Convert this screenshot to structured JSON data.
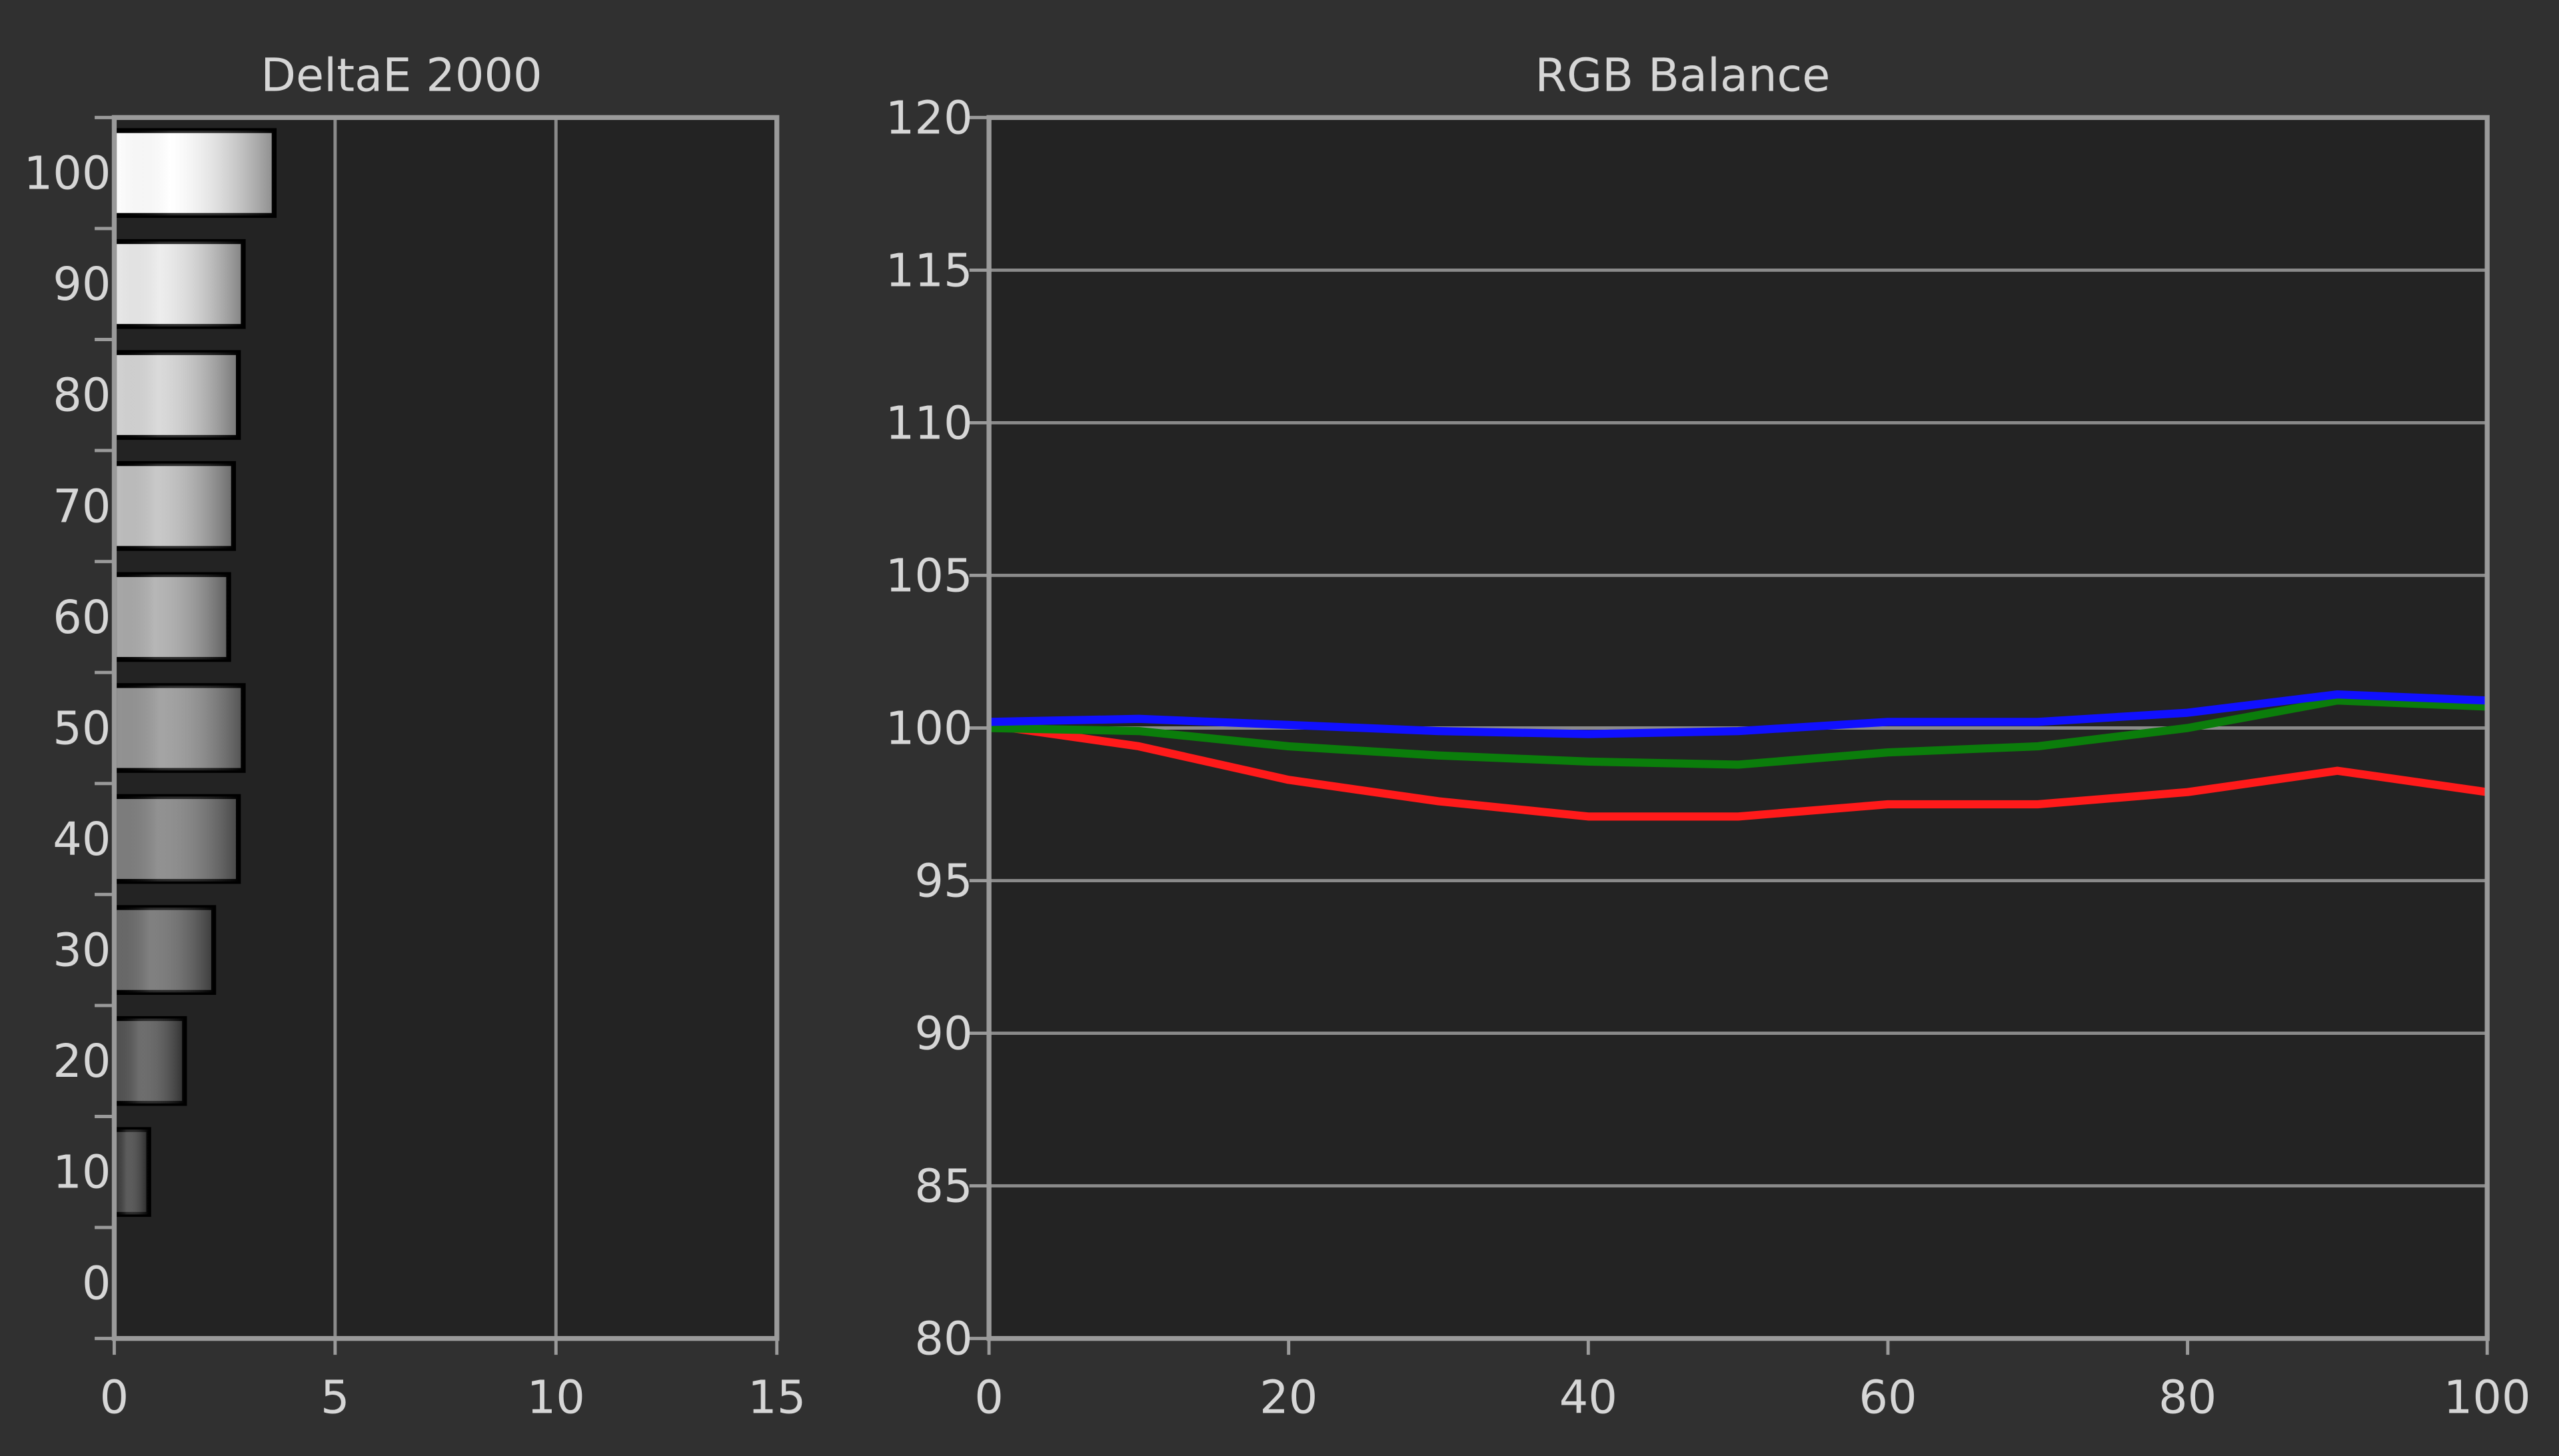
{
  "chart_data": [
    {
      "type": "bar",
      "orientation": "horizontal",
      "title": "DeltaE 2000",
      "categories": [
        "0",
        "10",
        "20",
        "30",
        "40",
        "50",
        "60",
        "70",
        "80",
        "90",
        "100"
      ],
      "values": [
        null,
        0.78,
        1.59,
        2.25,
        2.81,
        2.92,
        2.59,
        2.7,
        2.81,
        2.92,
        3.62
      ],
      "xlim": [
        0,
        15
      ],
      "xticks": [
        0,
        5,
        10,
        15
      ],
      "grid": true
    },
    {
      "type": "line",
      "title": "RGB Balance",
      "x": [
        0,
        10,
        20,
        30,
        40,
        50,
        60,
        70,
        80,
        90,
        100
      ],
      "series": [
        {
          "color": "#ff1a1a",
          "values": [
            100.1,
            99.4,
            98.3,
            97.6,
            97.1,
            97.1,
            97.5,
            97.5,
            97.9,
            98.6,
            97.9
          ]
        },
        {
          "color": "#0b7d0b",
          "values": [
            100.0,
            99.9,
            99.4,
            99.1,
            98.9,
            98.8,
            99.2,
            99.4,
            100.0,
            100.9,
            100.7
          ]
        },
        {
          "color": "#1010ff",
          "values": [
            100.2,
            100.3,
            100.1,
            99.9,
            99.8,
            99.9,
            100.2,
            100.2,
            100.5,
            101.1,
            100.9
          ]
        }
      ],
      "xlim": [
        0,
        100
      ],
      "xticks": [
        0,
        20,
        40,
        60,
        80,
        100
      ],
      "ylim": [
        80,
        120
      ],
      "yticks": [
        80,
        85,
        90,
        95,
        100,
        105,
        110,
        115,
        120
      ],
      "grid": true
    }
  ]
}
